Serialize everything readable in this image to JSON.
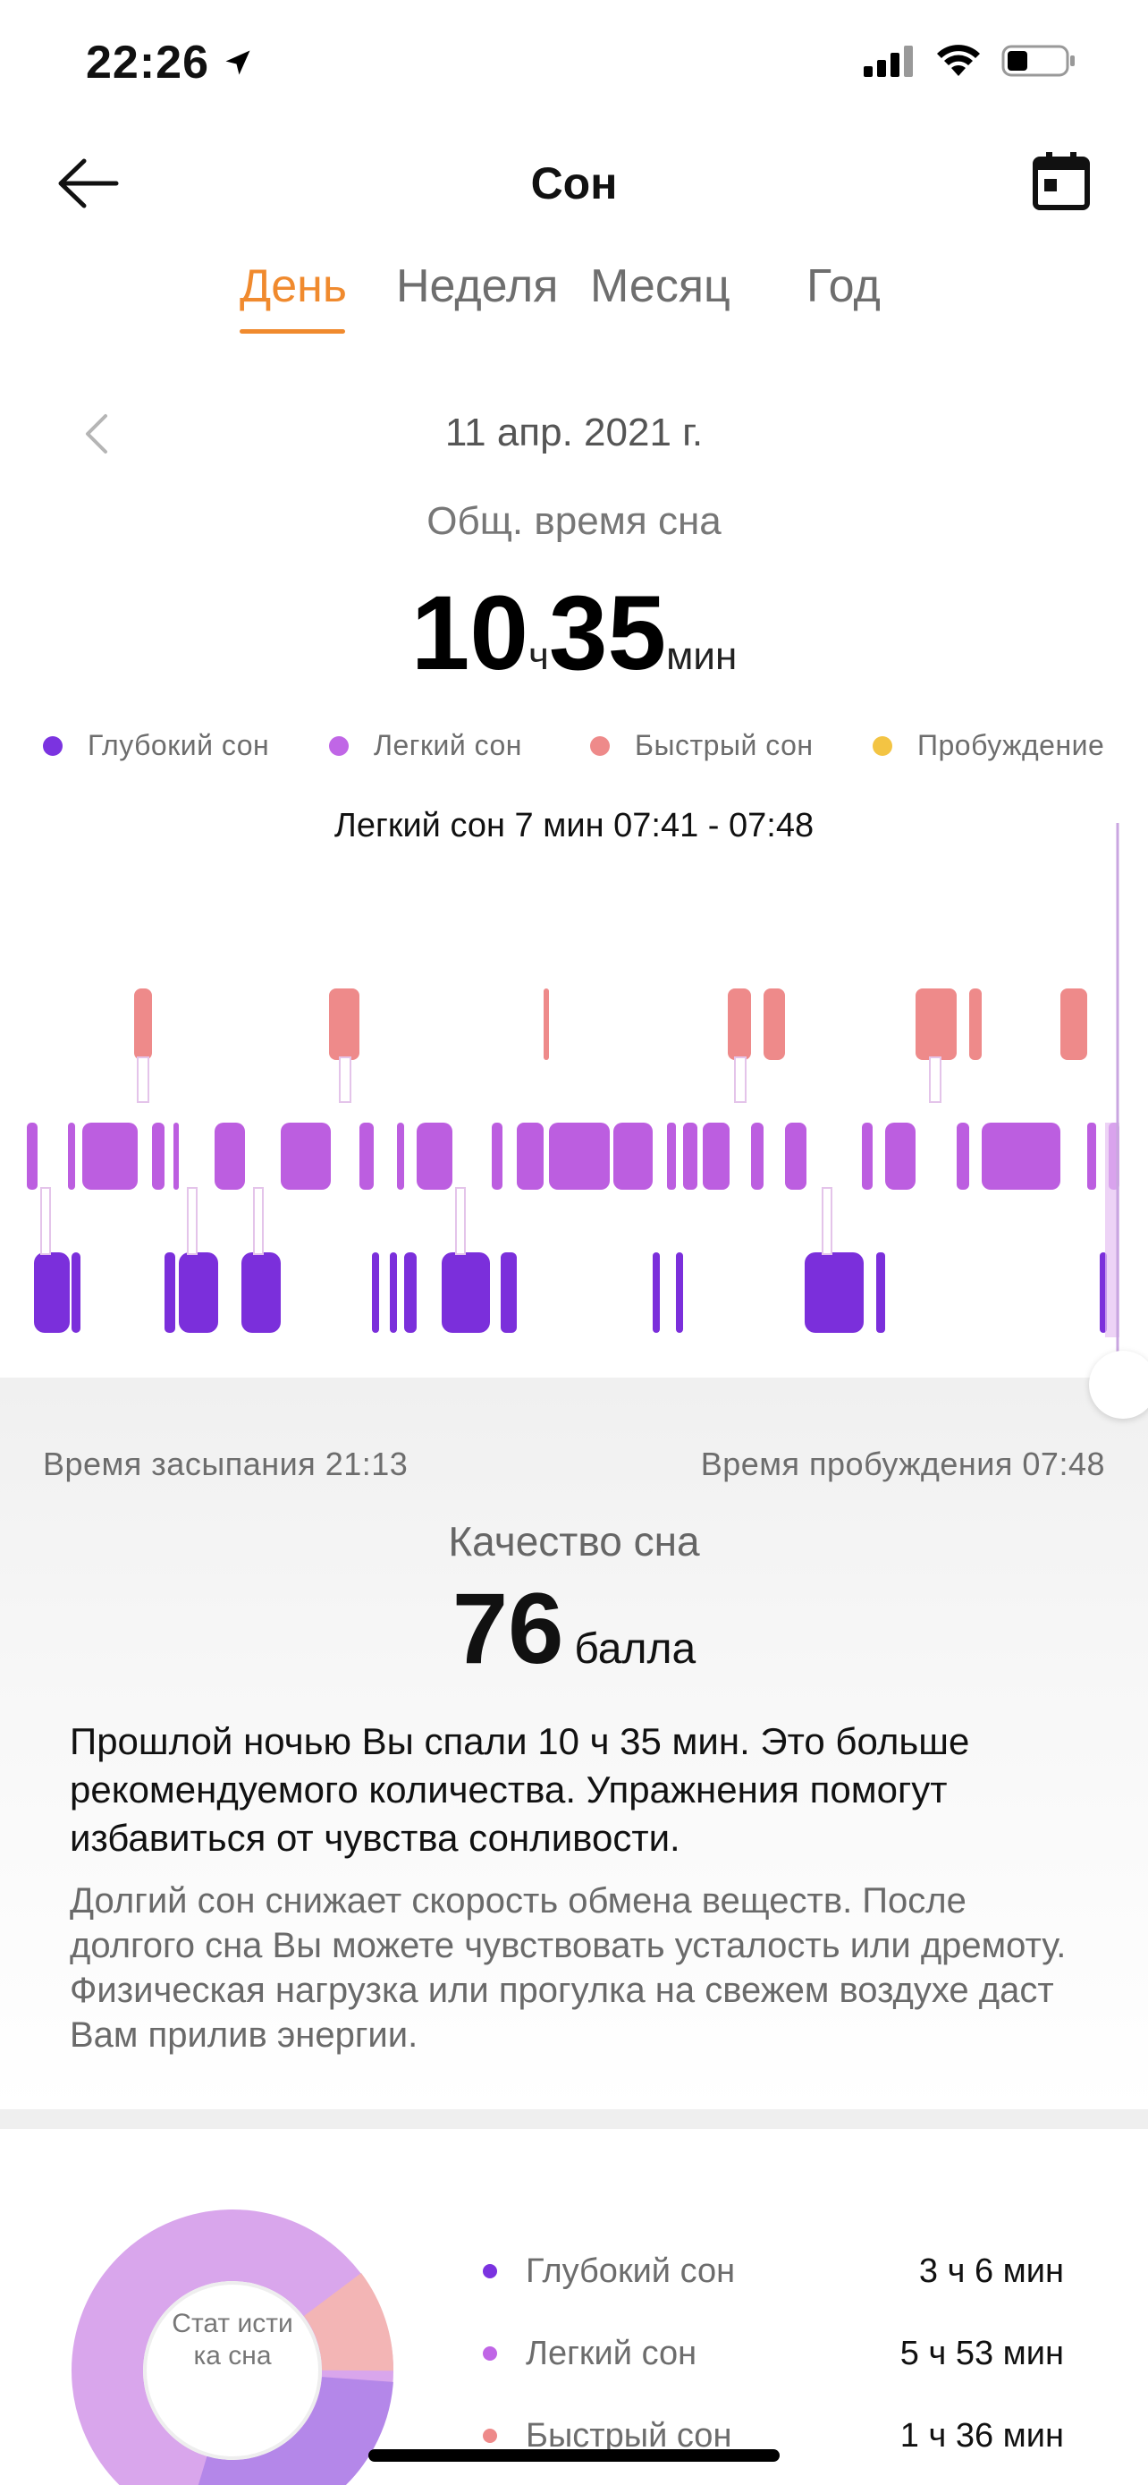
{
  "status_bar": {
    "time": "22:26"
  },
  "nav": {
    "title": "Сон"
  },
  "tabs": [
    {
      "label": "День",
      "active": true
    },
    {
      "label": "Неделя",
      "active": false
    },
    {
      "label": "Месяц",
      "active": false
    },
    {
      "label": "Год",
      "active": false
    }
  ],
  "date": "11 апр. 2021 г.",
  "total": {
    "label": "Общ. время сна",
    "hours": "10",
    "hours_unit": "ч",
    "minutes": "35",
    "minutes_unit": "мин"
  },
  "legend": [
    {
      "label": "Глубокий сон",
      "color": "#7b33e0"
    },
    {
      "label": "Легкий сон",
      "color": "#c066e6"
    },
    {
      "label": "Быстрый сон",
      "color": "#ee8a8a"
    },
    {
      "label": "Пробуждение",
      "color": "#f3c443"
    }
  ],
  "selection_label": "Легкий сон 7 мин 07:41 - 07:48",
  "summary": {
    "asleep": "Время засыпания 21:13",
    "wake": "Время пробуждения 07:48",
    "quality_title": "Качество сна",
    "quality_value": "76",
    "quality_unit": "балла",
    "advice": "Прошлой ночью Вы спали 10 ч 35 мин. Это больше рекомендуемого количества. Упражнения помогут избавиться от чувства сонливости.",
    "advice_sub": "Долгий сон снижает скорость обмена веществ. После долгого сна Вы можете чувствовать усталость или дремоту. Физическая нагрузка или прогулка на свежем воздухе даст Вам прилив энергии."
  },
  "stats": {
    "donut_label": "Стат исти ка сна",
    "rows": [
      {
        "name": "Глубокий сон",
        "value": "3 ч 6 мин",
        "color": "#7b33e0"
      },
      {
        "name": "Легкий сон",
        "value": "5 ч 53 мин",
        "color": "#c066e6"
      },
      {
        "name": "Быстрый сон",
        "value": "1 ч 36 мин",
        "color": "#ee8a8a"
      }
    ]
  }
}
